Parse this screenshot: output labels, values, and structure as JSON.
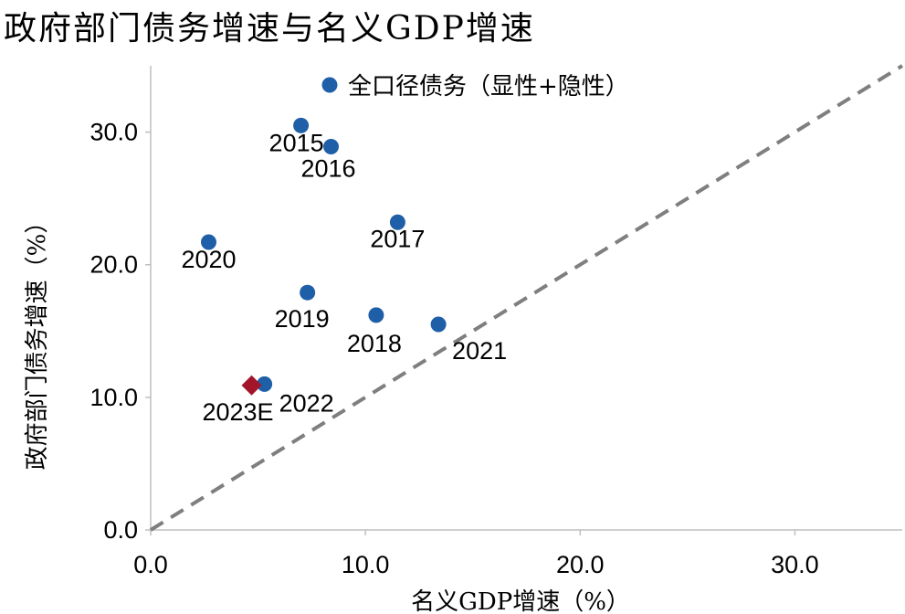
{
  "chart_title": "政府部门债务增速与名义GDP增速",
  "chart_data": {
    "type": "scatter",
    "title": "政府部门债务增速与名义GDP增速",
    "xlabel": "名义GDP增速（%）",
    "ylabel": "政府部门债务增速（%）",
    "xlim": [
      0,
      35
    ],
    "ylim": [
      0,
      35
    ],
    "x_ticks": [
      "0.0",
      "10.0",
      "20.0",
      "30.0"
    ],
    "y_ticks": [
      "0.0",
      "10.0",
      "20.0",
      "30.0"
    ],
    "grid": false,
    "legend_position": "top",
    "reference_line": {
      "style": "dashed",
      "color": "#7f7f7f",
      "from": [
        0,
        0
      ],
      "to": [
        35,
        35
      ]
    },
    "series": [
      {
        "name": "全口径债务（显性+隐性）",
        "marker": "circle",
        "color": "#1f5fa8",
        "points": [
          {
            "label": "2015",
            "x": 7.0,
            "y": 30.5
          },
          {
            "label": "2016",
            "x": 8.4,
            "y": 28.9
          },
          {
            "label": "2017",
            "x": 11.5,
            "y": 23.2
          },
          {
            "label": "2018",
            "x": 10.5,
            "y": 16.2
          },
          {
            "label": "2019",
            "x": 7.3,
            "y": 17.9
          },
          {
            "label": "2020",
            "x": 2.7,
            "y": 21.7
          },
          {
            "label": "2021",
            "x": 13.4,
            "y": 15.5
          },
          {
            "label": "2022",
            "x": 5.3,
            "y": 11.0
          }
        ]
      },
      {
        "marker": "diamond",
        "color": "#a3162a",
        "points": [
          {
            "label": "2023E",
            "x": 4.7,
            "y": 10.9
          }
        ]
      }
    ]
  }
}
